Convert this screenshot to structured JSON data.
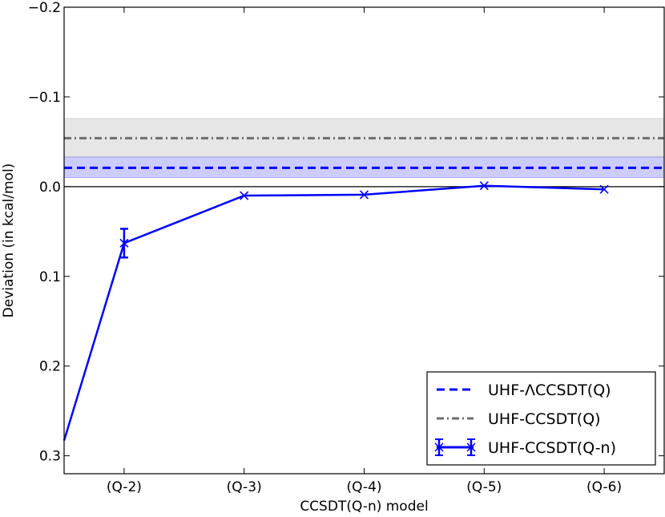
{
  "chart_data": {
    "type": "line",
    "xlabel": "CCSDT(Q-n) model",
    "ylabel": "Deviation (in kcal/mol)",
    "categories": [
      "(Q-2)",
      "(Q-3)",
      "(Q-4)",
      "(Q-5)",
      "(Q-6)"
    ],
    "x_range": [
      0.5,
      5.5
    ],
    "ylim": [
      0.32,
      -0.2
    ],
    "y_inverted": true,
    "y_ticks": [
      -0.2,
      -0.1,
      0.0,
      0.1,
      0.2,
      0.3
    ],
    "y_tick_labels": [
      "−0.2",
      "−0.1",
      "0.0",
      "0.1",
      "0.2",
      "0.3"
    ],
    "zero_line": 0.0,
    "grid": false,
    "legend_position": "lower-right",
    "series": [
      {
        "name": "UHF-ΛCCSDT(Q)",
        "kind": "hline",
        "style": "dashed",
        "color": "#0000ff",
        "value": -0.021,
        "band": [
          -0.033,
          -0.01
        ],
        "band_color": "#0000ff"
      },
      {
        "name": "UHF-CCSDT(Q)",
        "kind": "hline",
        "style": "dashdot",
        "color": "#6e6e6e",
        "value": -0.054,
        "band": [
          -0.076,
          -0.033
        ],
        "band_color": "#808080"
      },
      {
        "name": "UHF-CCSDT(Q-n)",
        "kind": "errorbar-line",
        "style": "solid",
        "color": "#0000ff",
        "x": [
          0.5,
          1,
          2,
          3,
          4,
          5
        ],
        "values": [
          0.283,
          0.063,
          0.01,
          0.009,
          -0.001,
          0.003
        ],
        "errors": [
          0,
          0.016,
          0,
          0,
          0,
          0
        ]
      }
    ]
  }
}
